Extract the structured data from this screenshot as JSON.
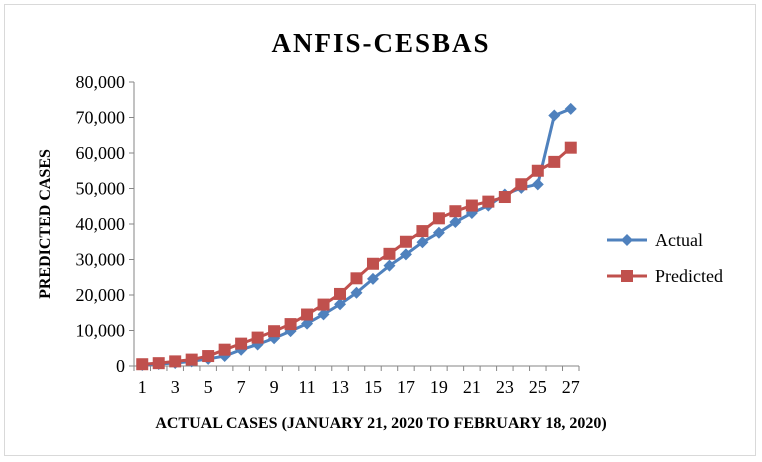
{
  "chart_data": {
    "type": "line",
    "title": "ANFIS-CESBAS",
    "xlabel": "ACTUAL CASES (JANUARY 21,  2020 TO FEBRUARY 18,  2020)",
    "ylabel": "PREDICTED CASES",
    "x": [
      1,
      2,
      3,
      4,
      5,
      6,
      7,
      8,
      9,
      10,
      11,
      12,
      13,
      14,
      15,
      16,
      17,
      18,
      19,
      20,
      21,
      22,
      23,
      24,
      25,
      26,
      27
    ],
    "x_tick_labels": [
      "1",
      "3",
      "5",
      "7",
      "9",
      "11",
      "13",
      "15",
      "17",
      "19",
      "21",
      "23",
      "25",
      "27"
    ],
    "y_tick_labels": [
      "0",
      "10,000",
      "20,000",
      "30,000",
      "40,000",
      "50,000",
      "60,000",
      "70,000",
      "80,000"
    ],
    "ylim": [
      0,
      80000
    ],
    "legend_position": "right",
    "grid": false,
    "series": [
      {
        "name": "Actual",
        "color": "#4f81bd",
        "marker": "diamond",
        "values": [
          278,
          580,
          845,
          1317,
          2015,
          2800,
          4581,
          6058,
          7813,
          9823,
          11950,
          14553,
          17391,
          20630,
          24545,
          28266,
          31439,
          34876,
          37552,
          40553,
          43099,
          45171,
          48315,
          50159,
          51174,
          70548,
          72436
        ]
      },
      {
        "name": "Predicted",
        "color": "#c0504d",
        "marker": "square",
        "values": [
          500,
          800,
          1300,
          1800,
          2800,
          4600,
          6300,
          8000,
          9800,
          11800,
          14500,
          17300,
          20300,
          24700,
          28800,
          31600,
          35000,
          38000,
          41600,
          43600,
          45200,
          46300,
          47600,
          51200,
          55000,
          57500,
          61500
        ]
      }
    ]
  }
}
